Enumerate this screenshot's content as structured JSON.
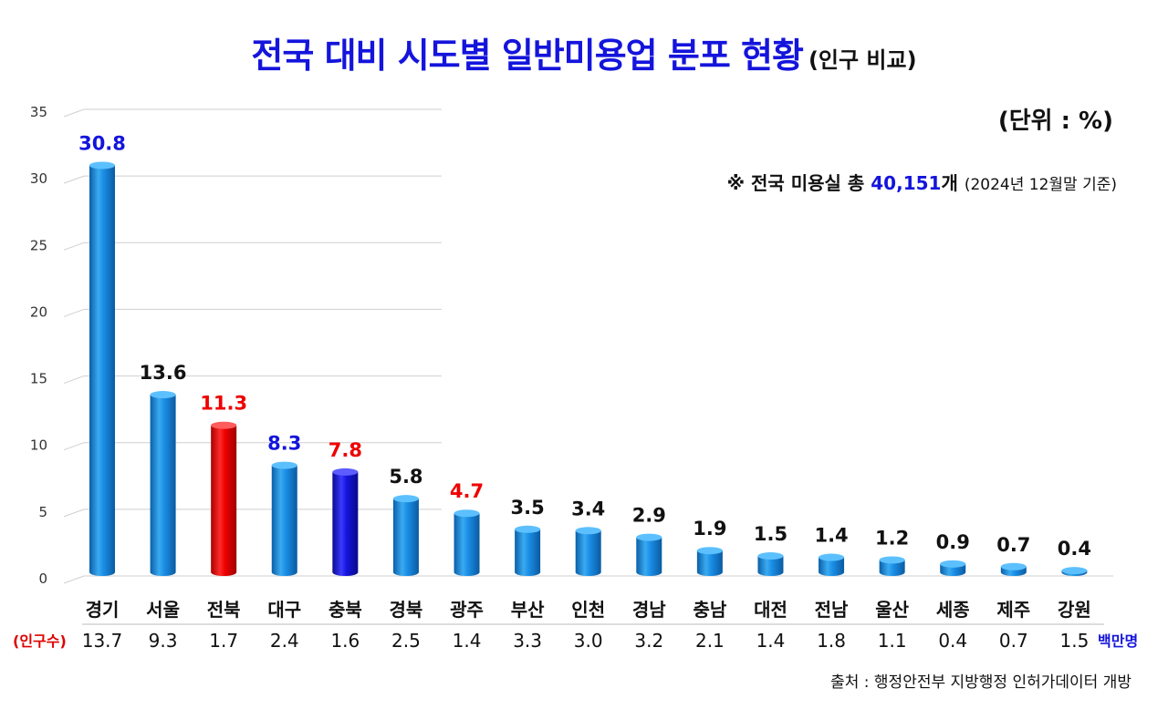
{
  "title": "전국 대비 시도별 일반미용업 분포 현황",
  "subtitle": "(인구 비교)",
  "unit_label": "(단위 : %)",
  "note": {
    "prefix": "※ 전국 미용실 총 ",
    "highlight": "40,151",
    "suffix": "개 ",
    "basis": "(2024년 12월말 기준)"
  },
  "population_label": "(인구수)",
  "population_unit": "백만명",
  "source": "출처 : 행정안전부 지방행정 인허가데이터 개방",
  "colors": {
    "title": "#1414dc",
    "bar_default": "#1a8ee6",
    "bar_red": "#ee0000",
    "bar_blue": "#1414dc",
    "label_black": "#111111",
    "label_blue": "#1414dc",
    "label_red": "#ee0000"
  },
  "chart_data": {
    "type": "bar",
    "categories": [
      "경기",
      "서울",
      "전북",
      "대구",
      "충북",
      "경북",
      "광주",
      "부산",
      "인천",
      "경남",
      "충남",
      "대전",
      "전남",
      "울산",
      "세종",
      "제주",
      "강원"
    ],
    "values": [
      30.8,
      13.6,
      11.3,
      8.3,
      7.8,
      5.8,
      4.7,
      3.5,
      3.4,
      2.9,
      1.9,
      1.5,
      1.4,
      1.2,
      0.9,
      0.7,
      0.4
    ],
    "value_labels": [
      "30.8",
      "13.6",
      "11.3",
      "8.3",
      "7.8",
      "5.8",
      "4.7",
      "3.5",
      "3.4",
      "2.9",
      "1.9",
      "1.5",
      "1.4",
      "1.2",
      "0.9",
      "0.7",
      "0.4"
    ],
    "label_colors": [
      "blue",
      "black",
      "red",
      "blue",
      "red",
      "black",
      "red",
      "black",
      "black",
      "black",
      "black",
      "black",
      "black",
      "black",
      "black",
      "black",
      "black"
    ],
    "bar_colors": [
      "default",
      "default",
      "red",
      "default",
      "blue",
      "default",
      "default",
      "default",
      "default",
      "default",
      "default",
      "default",
      "default",
      "default",
      "default",
      "default",
      "default"
    ],
    "population": [
      "13.7",
      "9.3",
      "1.7",
      "2.4",
      "1.6",
      "2.5",
      "1.4",
      "3.3",
      "3.0",
      "3.2",
      "2.1",
      "1.4",
      "1.8",
      "1.1",
      "0.4",
      "0.7",
      "1.5"
    ],
    "ylim": [
      0,
      35
    ],
    "yticks": [
      0,
      5,
      10,
      15,
      20,
      25,
      30,
      35
    ],
    "grid": true
  }
}
